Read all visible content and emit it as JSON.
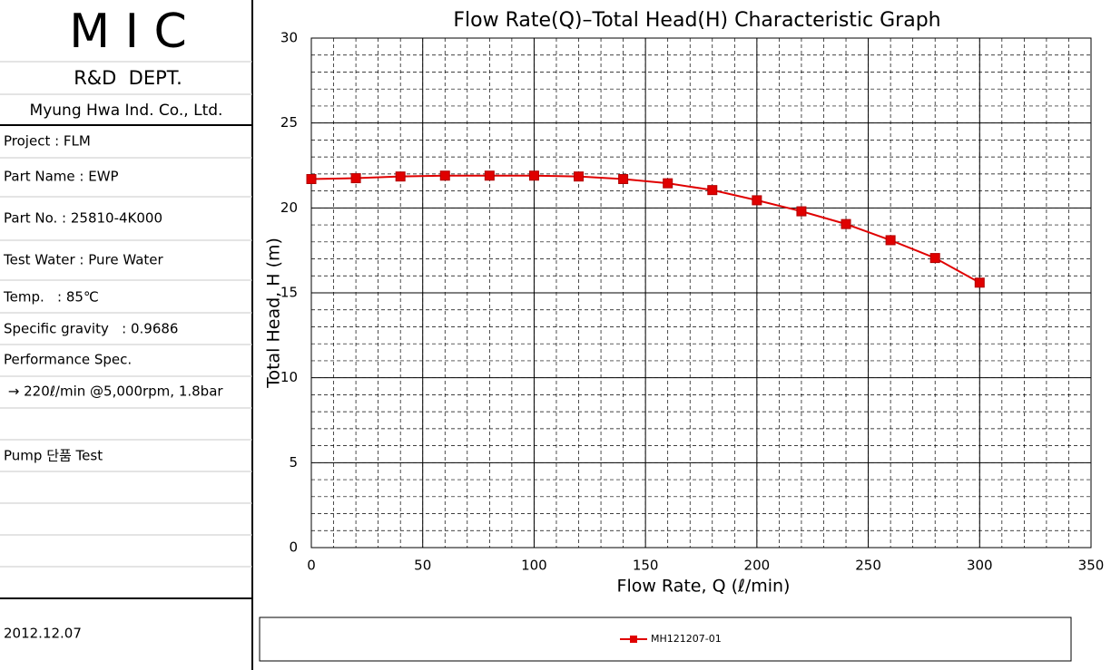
{
  "sheet": {
    "logo": "M I C",
    "dept": "R&D  DEPT.",
    "company": "Myung Hwa Ind. Co., Ltd.",
    "info": [
      "Project : FLM",
      "Part Name : EWP",
      "Part No. : 25810-4K000",
      "Test Water : Pure Water",
      "Temp.   : 85℃",
      "Specific gravity   : 0.9686",
      "Performance Spec.",
      " → 220ℓ/min @5,000rpm, 1.8bar",
      "Pump 단품 Test"
    ],
    "date": "2012.12.07"
  },
  "chart_data": {
    "type": "line",
    "title": "Flow Rate(Q)–Total Head(H) Characteristic Graph",
    "x_label": "Flow Rate, Q (ℓ/min)",
    "y_label": "Total Head, H (m)",
    "x": [
      0,
      20,
      40,
      60,
      80,
      100,
      120,
      140,
      160,
      180,
      200,
      220,
      240,
      260,
      280,
      300
    ],
    "series": [
      {
        "name": "MH121207-01",
        "color": "#e00000",
        "values": [
          21.7,
          21.75,
          21.85,
          21.9,
          21.9,
          21.9,
          21.85,
          21.7,
          21.45,
          21.05,
          20.45,
          19.8,
          19.05,
          18.1,
          17.05,
          15.6
        ]
      }
    ],
    "xlim": [
      0,
      350
    ],
    "xticks": [
      0,
      50,
      100,
      150,
      200,
      250,
      300,
      350
    ],
    "ylim": [
      0,
      30
    ],
    "yticks": [
      0,
      5,
      10,
      15,
      20,
      25,
      30
    ],
    "x_minor_step": 10,
    "y_minor_step": 1,
    "grid": true,
    "legend": "bottom"
  }
}
